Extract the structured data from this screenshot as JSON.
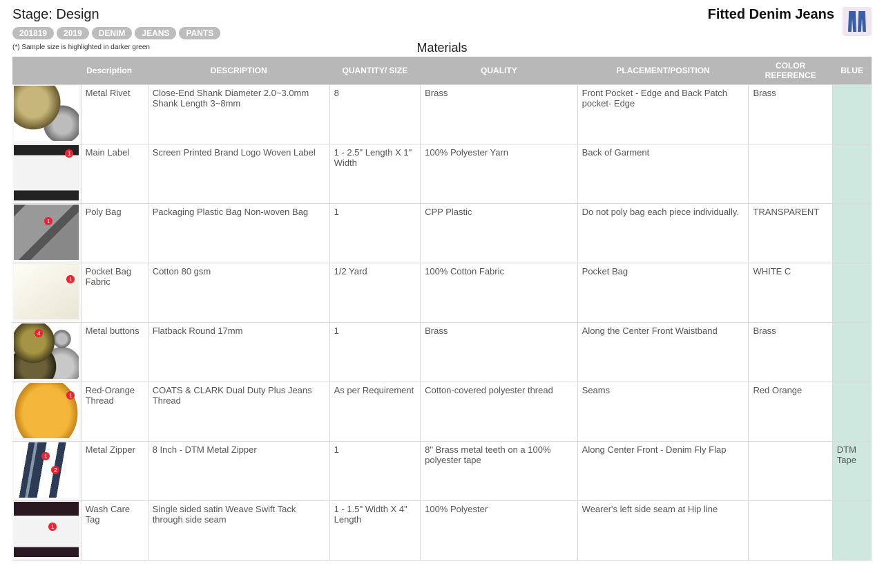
{
  "header": {
    "stage_title": "Stage: Design",
    "product_title": "Fitted Denim Jeans",
    "tags": [
      "201819",
      "2019",
      "DENIM",
      "JEANS",
      "PANTS"
    ],
    "sample_note": "(*) Sample size is highlighted in darker green",
    "section_title": "Materials"
  },
  "table": {
    "columns": [
      "",
      "Description",
      "DESCRIPTION",
      "QUANTITY/ SIZE",
      "QUALITY",
      "PLACEMENT/POSITION",
      "COLOR REFERENCE",
      "BLUE"
    ],
    "rows": [
      {
        "thumb_class": "t-rivet",
        "desc1": "Metal Rivet",
        "desc2": "Close-End  Shank Diameter 2.0~3.0mm Shank Length 3~8mm",
        "qty": "8",
        "quality": "Brass",
        "placement": "Front Pocket - Edge and Back Patch pocket-  Edge",
        "colorref": "Brass",
        "blue": ""
      },
      {
        "thumb_class": "t-label",
        "badge": "1",
        "badge_pos": "top:6px; right:8px;",
        "desc1": "Main Label",
        "desc2": "Screen Printed Brand Logo Woven Label",
        "qty": "1 - 2.5\" Length X 1\" Width",
        "quality": "100% Polyester Yarn",
        "placement": "Back of Garment",
        "colorref": "",
        "blue": ""
      },
      {
        "thumb_class": "t-poly",
        "badge": "1",
        "badge_pos": "top:18px; left:44px;",
        "desc1": "Poly Bag",
        "desc2": "Packaging Plastic Bag Non-woven Bag",
        "qty": "1",
        "quality": "CPP Plastic",
        "placement": "Do not poly bag each piece individually.",
        "colorref": "TRANSPARENT",
        "blue": ""
      },
      {
        "thumb_class": "t-fabric",
        "badge": "1",
        "badge_pos": "top:16px; right:6px;",
        "desc1": "Pocket Bag Fabric",
        "desc2": "Cotton 80 gsm",
        "qty": "1/2 Yard",
        "quality": "100% Cotton Fabric",
        "placement": "Pocket Bag",
        "colorref": "WHITE C",
        "blue": ""
      },
      {
        "thumb_class": "t-button",
        "badge": "4",
        "badge_pos": "top:8px; left:30px;",
        "desc1": "Metal buttons",
        "desc2": "Flatback Round 17mm",
        "qty": "1",
        "quality": "Brass",
        "placement": "Along the Center Front Waistband",
        "colorref": "Brass",
        "blue": ""
      },
      {
        "thumb_class": "t-thread",
        "badge": "1",
        "badge_pos": "top:12px; right:6px;",
        "desc1": "Red-Orange Thread",
        "desc2": "COATS & CLARK Dual Duty Plus Jeans Thread",
        "qty": "As per Requirement",
        "quality": "Cotton-covered polyester thread",
        "placement": "Seams",
        "colorref": "Red Orange",
        "blue": ""
      },
      {
        "thumb_class": "t-zipper",
        "badge": "1",
        "badge_pos": "top:14px; left:40px;",
        "badge2": "2",
        "badge2_pos": "top:34px; left:54px;",
        "desc1": "Metal Zipper",
        "desc2": " 8 Inch - DTM Metal Zipper",
        "qty": "1",
        "quality": "8\" Brass metal teeth on a 100% polyester tape",
        "placement": "Along Center Front - Denim Fly Flap",
        "colorref": "",
        "blue": "DTM Tape"
      },
      {
        "thumb_class": "t-care",
        "badge": "1",
        "badge_pos": "top:30px; left:50px;",
        "desc1": "Wash Care Tag",
        "desc2": "Single sided satin Weave Swift Tack through side seam",
        "qty": "1 - 1.5\" Width X 4\" Length",
        "quality": "100% Polyester",
        "placement": "Wearer's left side seam at Hip line",
        "colorref": "",
        "blue": ""
      }
    ]
  }
}
